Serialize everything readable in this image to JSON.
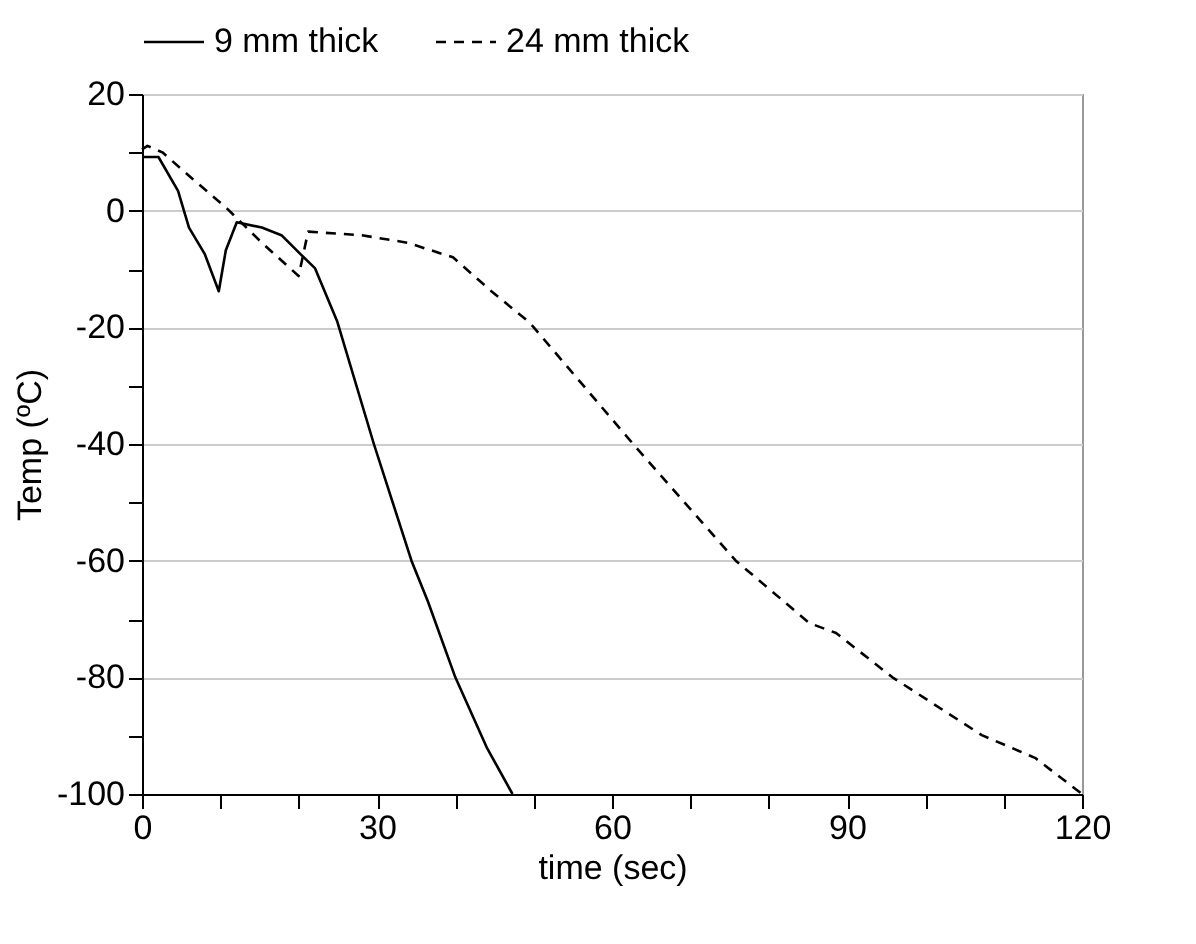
{
  "chart_data": {
    "type": "line",
    "xlabel": "time (sec)",
    "ylabel": "Temp (ºC)",
    "xlim": [
      0,
      120
    ],
    "ylim": [
      -100,
      20
    ],
    "xticks": [
      0,
      {
        "value": 10,
        "label": null
      },
      {
        "value": 20,
        "label": null
      },
      30,
      {
        "value": 40,
        "label": null
      },
      {
        "value": 50,
        "label": null
      },
      60,
      {
        "value": 70,
        "label": null
      },
      {
        "value": 80,
        "label": null
      },
      90,
      {
        "value": 100,
        "label": null
      },
      {
        "value": 110,
        "label": null
      },
      120
    ],
    "yticks": [
      -100,
      {
        "value": -90,
        "label": null
      },
      -80,
      {
        "value": -70,
        "label": null
      },
      -60,
      {
        "value": -50,
        "label": null
      },
      -40,
      {
        "value": -30,
        "label": null
      },
      -20,
      {
        "value": -10,
        "label": null
      },
      0,
      {
        "value": 10,
        "label": null
      },
      20
    ],
    "grid": "y",
    "legend": "top",
    "marker": "none",
    "series": [
      {
        "name": "9 mm thick",
        "color": "#000000",
        "line_style": "solid",
        "x": [
          0,
          2.1,
          4.6,
          6,
          8,
          9.8,
          10.7,
          12.1,
          15.3,
          17.8,
          20.2,
          22.1,
          24.9,
          29.6,
          34.4,
          36.5,
          40,
          44,
          47.3
        ],
        "values": [
          9.2,
          9.2,
          3.4,
          -2.9,
          -7.4,
          -13.8,
          -6.8,
          -2,
          -2.9,
          -4.2,
          -7.4,
          -9.9,
          -18.9,
          -40,
          -60,
          -67,
          -80,
          -92,
          -100
        ]
      },
      {
        "name": "24 mm thick",
        "color": "#000000",
        "line_style": "dashed",
        "x": [
          0,
          0.7,
          2.6,
          6.5,
          10.9,
          15.3,
          20,
          21.2,
          28,
          33.9,
          39.7,
          44.6,
          49.5,
          62.7,
          75.8,
          85.2,
          88.6,
          95.8,
          107.2,
          114,
          120
        ],
        "values": [
          10.5,
          11.1,
          10,
          5.4,
          0.3,
          -5.5,
          -11.2,
          -3.6,
          -4.2,
          -5.5,
          -8,
          -13.8,
          -19.2,
          -40,
          -60,
          -70.7,
          -72.4,
          -80,
          -89.9,
          -93.8,
          -100
        ]
      }
    ]
  }
}
